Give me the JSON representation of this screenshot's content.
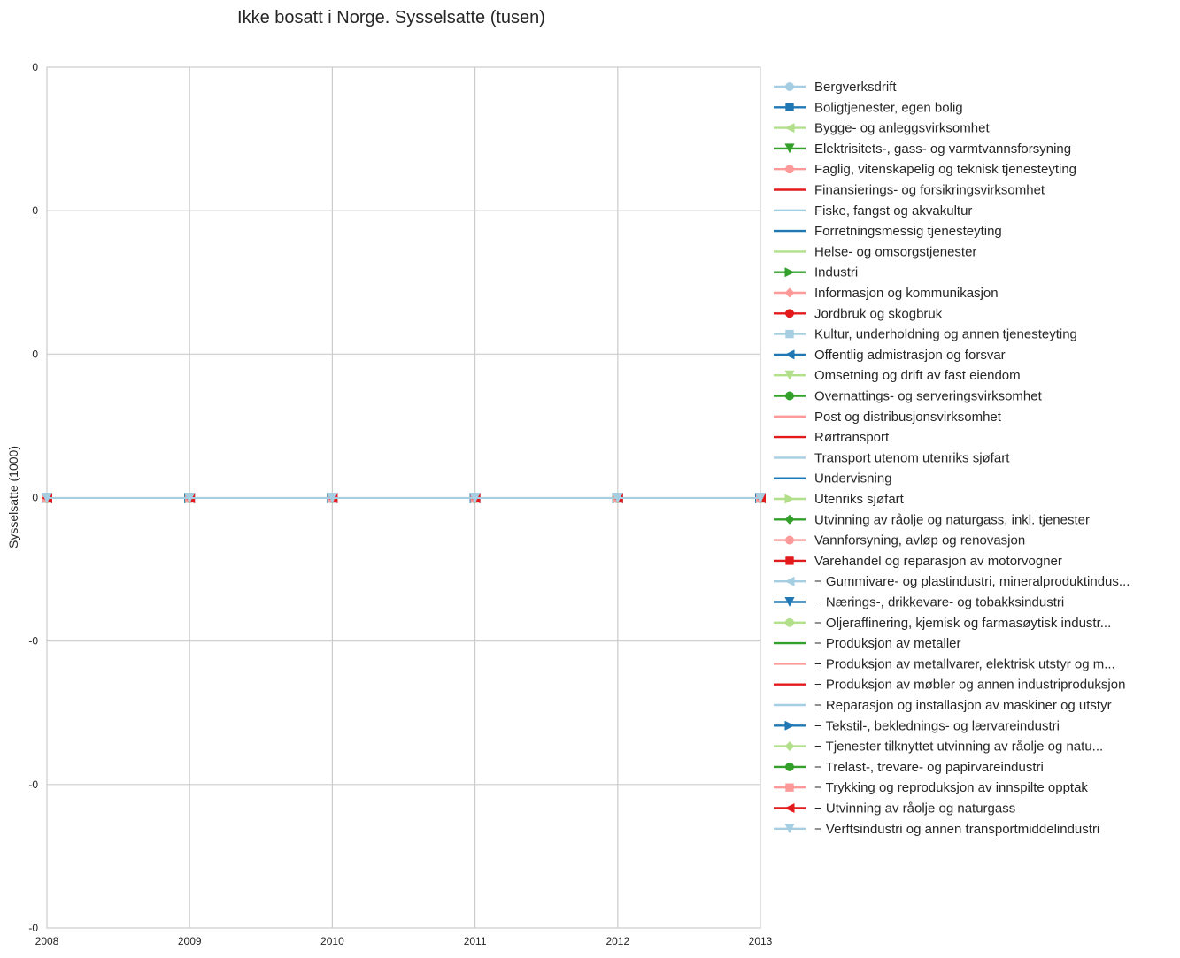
{
  "chart_data": {
    "type": "line",
    "title": "Ikke bosatt i Norge. Sysselsatte (tusen)",
    "xlabel": "",
    "ylabel": "Sysselsatte (1000)",
    "x": [
      2008,
      2009,
      2010,
      2011,
      2012,
      2013
    ],
    "x_tick_labels": [
      "2008",
      "2009",
      "2010",
      "2011",
      "2012",
      "2013"
    ],
    "xlim": [
      2008,
      2013
    ],
    "y_tick_labels": [
      "0",
      "0",
      "0",
      "0",
      "-0",
      "-0",
      "-0"
    ],
    "grid": true,
    "legend_position": "outside-right",
    "series": [
      {
        "name": "Bergverksdrift",
        "color": "#a6cee3",
        "marker": "circle",
        "values": [
          0,
          0,
          0,
          0,
          0,
          0
        ]
      },
      {
        "name": "Boligtjenester, egen bolig",
        "color": "#1f78b4",
        "marker": "square",
        "values": [
          0,
          0,
          0,
          0,
          0,
          0
        ]
      },
      {
        "name": "Bygge- og anleggsvirksomhet",
        "color": "#b2df8a",
        "marker": "triangle-left",
        "values": [
          0,
          0,
          0,
          0,
          0,
          0
        ]
      },
      {
        "name": "Elektrisitets-, gass- og varmtvannsforsyning",
        "color": "#33a02c",
        "marker": "triangle-down",
        "values": [
          0,
          0,
          0,
          0,
          0,
          0
        ]
      },
      {
        "name": "Faglig, vitenskapelig og teknisk tjenesteyting",
        "color": "#fb9a99",
        "marker": "circle",
        "values": [
          0,
          0,
          0,
          0,
          0,
          0
        ]
      },
      {
        "name": "Finansierings- og forsikringsvirksomhet",
        "color": "#e31a1c",
        "marker": "none",
        "values": [
          0,
          0,
          0,
          0,
          0,
          0
        ]
      },
      {
        "name": "Fiske, fangst og akvakultur",
        "color": "#a6cee3",
        "marker": "none",
        "values": [
          0,
          0,
          0,
          0,
          0,
          0
        ]
      },
      {
        "name": "Forretningsmessig tjenesteyting",
        "color": "#1f78b4",
        "marker": "none",
        "values": [
          0,
          0,
          0,
          0,
          0,
          0
        ]
      },
      {
        "name": "Helse- og omsorgstjenester",
        "color": "#b2df8a",
        "marker": "none",
        "values": [
          0,
          0,
          0,
          0,
          0,
          0
        ]
      },
      {
        "name": "Industri",
        "color": "#33a02c",
        "marker": "triangle-right",
        "values": [
          0,
          0,
          0,
          0,
          0,
          0
        ]
      },
      {
        "name": "Informasjon og kommunikasjon",
        "color": "#fb9a99",
        "marker": "diamond",
        "values": [
          0,
          0,
          0,
          0,
          0,
          0
        ]
      },
      {
        "name": "Jordbruk og skogbruk",
        "color": "#e31a1c",
        "marker": "circle",
        "values": [
          0,
          0,
          0,
          0,
          0,
          0
        ]
      },
      {
        "name": "Kultur, underholdning og annen tjenesteyting",
        "color": "#a6cee3",
        "marker": "square",
        "values": [
          0,
          0,
          0,
          0,
          0,
          0
        ]
      },
      {
        "name": "Offentlig admistrasjon og forsvar",
        "color": "#1f78b4",
        "marker": "triangle-left",
        "values": [
          0,
          0,
          0,
          0,
          0,
          0
        ]
      },
      {
        "name": "Omsetning og drift av fast eiendom",
        "color": "#b2df8a",
        "marker": "triangle-down",
        "values": [
          0,
          0,
          0,
          0,
          0,
          0
        ]
      },
      {
        "name": "Overnattings- og serveringsvirksomhet",
        "color": "#33a02c",
        "marker": "circle",
        "values": [
          0,
          0,
          0,
          0,
          0,
          0
        ]
      },
      {
        "name": "Post og distribusjonsvirksomhet",
        "color": "#fb9a99",
        "marker": "none",
        "values": [
          0,
          0,
          0,
          0,
          0,
          0
        ]
      },
      {
        "name": "Rørtransport",
        "color": "#e31a1c",
        "marker": "none",
        "values": [
          0,
          0,
          0,
          0,
          0,
          0
        ]
      },
      {
        "name": "Transport utenom utenriks sjøfart",
        "color": "#a6cee3",
        "marker": "none",
        "values": [
          0,
          0,
          0,
          0,
          0,
          0
        ]
      },
      {
        "name": "Undervisning",
        "color": "#1f78b4",
        "marker": "none",
        "values": [
          0,
          0,
          0,
          0,
          0,
          0
        ]
      },
      {
        "name": "Utenriks sjøfart",
        "color": "#b2df8a",
        "marker": "triangle-right",
        "values": [
          0,
          0,
          0,
          0,
          0,
          0
        ]
      },
      {
        "name": "Utvinning av råolje og naturgass, inkl. tjenester",
        "color": "#33a02c",
        "marker": "diamond",
        "values": [
          0,
          0,
          0,
          0,
          0,
          0
        ]
      },
      {
        "name": "Vannforsyning, avløp og renovasjon",
        "color": "#fb9a99",
        "marker": "circle",
        "values": [
          0,
          0,
          0,
          0,
          0,
          0
        ]
      },
      {
        "name": "Varehandel og reparasjon av motorvogner",
        "color": "#e31a1c",
        "marker": "square",
        "values": [
          0,
          0,
          0,
          0,
          0,
          0
        ]
      },
      {
        "name": "¬ Gummivare- og plastindustri, mineralproduktindus...",
        "color": "#a6cee3",
        "marker": "triangle-left",
        "values": [
          0,
          0,
          0,
          0,
          0,
          0
        ]
      },
      {
        "name": "¬ Nærings-, drikkevare- og tobakksindustri",
        "color": "#1f78b4",
        "marker": "triangle-down",
        "values": [
          0,
          0,
          0,
          0,
          0,
          0
        ]
      },
      {
        "name": "¬ Oljeraffinering, kjemisk og farmasøytisk industr...",
        "color": "#b2df8a",
        "marker": "circle",
        "values": [
          0,
          0,
          0,
          0,
          0,
          0
        ]
      },
      {
        "name": "¬ Produksjon av metaller",
        "color": "#33a02c",
        "marker": "none",
        "values": [
          0,
          0,
          0,
          0,
          0,
          0
        ]
      },
      {
        "name": "¬ Produksjon av metallvarer, elektrisk utstyr og m...",
        "color": "#fb9a99",
        "marker": "none",
        "values": [
          0,
          0,
          0,
          0,
          0,
          0
        ]
      },
      {
        "name": "¬ Produksjon av møbler og annen industriproduksjon",
        "color": "#e31a1c",
        "marker": "none",
        "values": [
          0,
          0,
          0,
          0,
          0,
          0
        ]
      },
      {
        "name": "¬ Reparasjon og installasjon av maskiner og utstyr",
        "color": "#a6cee3",
        "marker": "none",
        "values": [
          0,
          0,
          0,
          0,
          0,
          0
        ]
      },
      {
        "name": "¬ Tekstil-, beklednings- og lærvareindustri",
        "color": "#1f78b4",
        "marker": "triangle-right",
        "values": [
          0,
          0,
          0,
          0,
          0,
          0
        ]
      },
      {
        "name": "¬ Tjenester tilknyttet utvinning av råolje og natu...",
        "color": "#b2df8a",
        "marker": "diamond",
        "values": [
          0,
          0,
          0,
          0,
          0,
          0
        ]
      },
      {
        "name": "¬ Trelast-, trevare- og papirvareindustri",
        "color": "#33a02c",
        "marker": "circle",
        "values": [
          0,
          0,
          0,
          0,
          0,
          0
        ]
      },
      {
        "name": "¬ Trykking og reproduksjon av innspilte opptak",
        "color": "#fb9a99",
        "marker": "square",
        "values": [
          0,
          0,
          0,
          0,
          0,
          0
        ]
      },
      {
        "name": "¬ Utvinning av råolje og naturgass",
        "color": "#e31a1c",
        "marker": "triangle-left",
        "values": [
          0,
          0,
          0,
          0,
          0,
          0
        ]
      },
      {
        "name": "¬ Verftsindustri og annen transportmiddelindustri",
        "color": "#a6cee3",
        "marker": "triangle-down",
        "values": [
          0,
          0,
          0,
          0,
          0,
          0
        ]
      }
    ]
  }
}
